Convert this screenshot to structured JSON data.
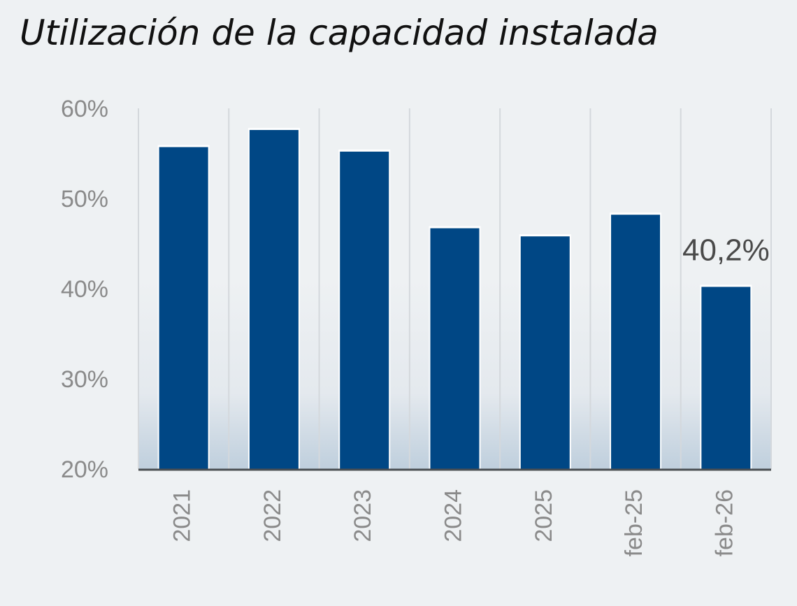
{
  "chart_data": {
    "type": "bar",
    "title": "Utilización de la capacidad instalada",
    "categories": [
      "2021",
      "2022",
      "2023",
      "2024",
      "2025",
      "feb-25",
      "feb-26"
    ],
    "values": [
      55.7,
      57.6,
      55.2,
      46.7,
      45.8,
      48.2,
      40.2
    ],
    "unit": "%",
    "ylim": [
      20,
      60
    ],
    "yticks": [
      60,
      50,
      40,
      30,
      20
    ],
    "ytick_labels": [
      "60%",
      "50%",
      "40%",
      "30%",
      "20%"
    ],
    "xlabel": "",
    "ylabel": "",
    "grid": "vertical",
    "annotations": [
      {
        "category": "feb-26",
        "text": "40,2%"
      }
    ],
    "colors": {
      "bar": "#004785",
      "axis": "#555555",
      "grid": "#d4d8dc",
      "background": "#eef1f3"
    }
  }
}
